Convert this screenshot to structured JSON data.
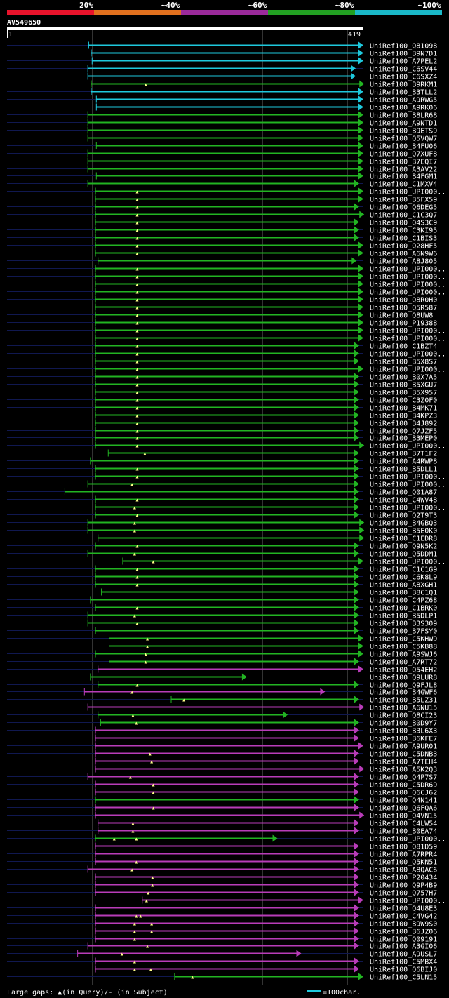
{
  "header": {
    "scale_labels": [
      "20%",
      "~40%",
      "~60%",
      "~80%",
      "~100%"
    ],
    "scale_colors": [
      "#e8132b",
      "#e0701e",
      "#9a2a9a",
      "#22a022",
      "#1ab8c8"
    ],
    "query_id": "AV549650",
    "ruler_start": "1",
    "ruler_end": "419"
  },
  "footer": {
    "legend_text": "Large gaps: ▲(in Query)/- (in Subject)",
    "scale_text": "=100char."
  },
  "colors": {
    "cyan": "#1ec8dc",
    "green": "#22b422",
    "magenta": "#b83cb8",
    "dark": "#101850",
    "gap": "#ffff88",
    "grid": "#333333"
  },
  "chart_data": {
    "type": "alignment",
    "query_length": 419,
    "grid_positions": [
      100,
      200,
      300,
      400
    ],
    "hits": [
      {
        "id": "UniRef100_Q81098",
        "start": 96,
        "end": 419,
        "identity": "~100%"
      },
      {
        "id": "UniRef100_B9N7D1",
        "start": 99,
        "end": 419,
        "identity": "~100%"
      },
      {
        "id": "UniRef100_A7PEL2",
        "start": 100,
        "end": 419,
        "identity": "~100%"
      },
      {
        "id": "UniRef100_C6SV44",
        "start": 95,
        "end": 410,
        "identity": "~100%"
      },
      {
        "id": "UniRef100_C6SXZ4",
        "start": 95,
        "end": 410,
        "identity": "~100%"
      },
      {
        "id": "UniRef100_B9RKM1",
        "start": 99,
        "end": 420,
        "identity": "~80%",
        "gaps": [
          163
        ]
      },
      {
        "id": "UniRef100_B3TLL2",
        "start": 99,
        "end": 419,
        "identity": "~100%"
      },
      {
        "id": "UniRef100_A9RWG5",
        "start": 105,
        "end": 419,
        "identity": "~100%"
      },
      {
        "id": "UniRef100_A9RK06",
        "start": 105,
        "end": 419,
        "identity": "~100%"
      },
      {
        "id": "UniRef100_B8LR68",
        "start": 95,
        "end": 419,
        "identity": "~80%"
      },
      {
        "id": "UniRef100_A9NTD1",
        "start": 95,
        "end": 419,
        "identity": "~80%"
      },
      {
        "id": "UniRef100_B9ETS9",
        "start": 95,
        "end": 419,
        "identity": "~80%"
      },
      {
        "id": "UniRef100_Q5VQW7",
        "start": 95,
        "end": 419,
        "identity": "~80%"
      },
      {
        "id": "UniRef100_B4FU06",
        "start": 105,
        "end": 419,
        "identity": "~80%"
      },
      {
        "id": "UniRef100_Q7XUF8",
        "start": 95,
        "end": 419,
        "identity": "~80%"
      },
      {
        "id": "UniRef100_B7EQI7",
        "start": 95,
        "end": 419,
        "identity": "~80%"
      },
      {
        "id": "UniRef100_A3AV22",
        "start": 95,
        "end": 419,
        "identity": "~80%"
      },
      {
        "id": "UniRef100_B4FGM1",
        "start": 105,
        "end": 419,
        "identity": "~80%"
      },
      {
        "id": "UniRef100_C1MXV4",
        "start": 95,
        "end": 414,
        "identity": "~80%"
      },
      {
        "id": "UniRef100_UPI000..",
        "start": 104,
        "end": 419,
        "identity": "~80%",
        "gaps": [
          153
        ]
      },
      {
        "id": "UniRef100_B5FX59",
        "start": 104,
        "end": 419,
        "identity": "~80%",
        "gaps": [
          153
        ]
      },
      {
        "id": "UniRef100_Q6DEG5",
        "start": 104,
        "end": 414,
        "identity": "~80%",
        "gaps": [
          153
        ]
      },
      {
        "id": "UniRef100_C1C3Q7",
        "start": 104,
        "end": 420,
        "identity": "~80%",
        "gaps": [
          153
        ]
      },
      {
        "id": "UniRef100_Q4S3C9",
        "start": 104,
        "end": 414,
        "identity": "~80%",
        "gaps": [
          153
        ]
      },
      {
        "id": "UniRef100_C3KI95",
        "start": 104,
        "end": 414,
        "identity": "~80%",
        "gaps": [
          153
        ]
      },
      {
        "id": "UniRef100_C1BIS3",
        "start": 104,
        "end": 414,
        "identity": "~80%",
        "gaps": [
          153
        ]
      },
      {
        "id": "UniRef100_Q28HF5",
        "start": 104,
        "end": 419,
        "identity": "~80%",
        "gaps": [
          153
        ]
      },
      {
        "id": "UniRef100_A6N9W6",
        "start": 104,
        "end": 419,
        "identity": "~80%",
        "gaps": [
          153
        ]
      },
      {
        "id": "UniRef100_A8J805",
        "start": 107,
        "end": 411,
        "identity": "~80%"
      },
      {
        "id": "UniRef100_UPI000..",
        "start": 104,
        "end": 419,
        "identity": "~80%",
        "gaps": [
          153
        ]
      },
      {
        "id": "UniRef100_UPI000..",
        "start": 104,
        "end": 419,
        "identity": "~80%",
        "gaps": [
          153
        ]
      },
      {
        "id": "UniRef100_UPI000..",
        "start": 104,
        "end": 419,
        "identity": "~80%",
        "gaps": [
          153
        ]
      },
      {
        "id": "UniRef100_UPI000..",
        "start": 104,
        "end": 419,
        "identity": "~80%",
        "gaps": [
          153
        ]
      },
      {
        "id": "UniRef100_Q8R0H0",
        "start": 104,
        "end": 419,
        "identity": "~80%",
        "gaps": [
          153
        ]
      },
      {
        "id": "UniRef100_Q5R587",
        "start": 104,
        "end": 419,
        "identity": "~80%",
        "gaps": [
          153
        ]
      },
      {
        "id": "UniRef100_Q8UW8",
        "start": 104,
        "end": 419,
        "identity": "~80%",
        "gaps": [
          153
        ]
      },
      {
        "id": "UniRef100_P19388",
        "start": 104,
        "end": 419,
        "identity": "~80%",
        "gaps": [
          153
        ]
      },
      {
        "id": "UniRef100_UPI000..",
        "start": 104,
        "end": 419,
        "identity": "~80%",
        "gaps": [
          153
        ]
      },
      {
        "id": "UniRef100_UPI000..",
        "start": 104,
        "end": 419,
        "identity": "~80%",
        "gaps": [
          153
        ]
      },
      {
        "id": "UniRef100_C1BZT4",
        "start": 104,
        "end": 414,
        "identity": "~80%",
        "gaps": [
          153
        ]
      },
      {
        "id": "UniRef100_UPI000..",
        "start": 104,
        "end": 414,
        "identity": "~80%",
        "gaps": [
          153
        ]
      },
      {
        "id": "UniRef100_B5X8S7",
        "start": 104,
        "end": 414,
        "identity": "~80%",
        "gaps": [
          153
        ]
      },
      {
        "id": "UniRef100_UPI000..",
        "start": 104,
        "end": 419,
        "identity": "~80%",
        "gaps": [
          153
        ]
      },
      {
        "id": "UniRef100_B0X7A5",
        "start": 104,
        "end": 414,
        "identity": "~80%",
        "gaps": [
          153
        ]
      },
      {
        "id": "UniRef100_B5XGU7",
        "start": 104,
        "end": 414,
        "identity": "~80%",
        "gaps": [
          153
        ]
      },
      {
        "id": "UniRef100_B5X957",
        "start": 104,
        "end": 414,
        "identity": "~80%",
        "gaps": [
          153
        ]
      },
      {
        "id": "UniRef100_C3Z0F0",
        "start": 104,
        "end": 414,
        "identity": "~80%",
        "gaps": [
          153
        ]
      },
      {
        "id": "UniRef100_B4MK71",
        "start": 104,
        "end": 414,
        "identity": "~80%",
        "gaps": [
          153
        ]
      },
      {
        "id": "UniRef100_B4KPZ3",
        "start": 104,
        "end": 414,
        "identity": "~80%",
        "gaps": [
          153
        ]
      },
      {
        "id": "UniRef100_B4J892",
        "start": 104,
        "end": 414,
        "identity": "~80%",
        "gaps": [
          153
        ]
      },
      {
        "id": "UniRef100_Q7JZF5",
        "start": 104,
        "end": 414,
        "identity": "~80%",
        "gaps": [
          153
        ]
      },
      {
        "id": "UniRef100_B3MEP0",
        "start": 104,
        "end": 414,
        "identity": "~80%",
        "gaps": [
          153
        ]
      },
      {
        "id": "UniRef100_UPI000..",
        "start": 104,
        "end": 420,
        "identity": "~80%",
        "gaps": [
          153
        ]
      },
      {
        "id": "UniRef100_B7T1F2",
        "start": 119,
        "end": 414,
        "identity": "~80%",
        "gaps": [
          162
        ]
      },
      {
        "id": "UniRef100_A4RWP8",
        "start": 98,
        "end": 414,
        "identity": "~80%"
      },
      {
        "id": "UniRef100_B5DLL1",
        "start": 104,
        "end": 414,
        "identity": "~80%",
        "gaps": [
          153
        ]
      },
      {
        "id": "UniRef100_UPI000..",
        "start": 104,
        "end": 414,
        "identity": "~80%",
        "gaps": [
          153
        ]
      },
      {
        "id": "UniRef100_UPI000..",
        "start": 95,
        "end": 414,
        "identity": "~80%",
        "gaps": [
          147
        ]
      },
      {
        "id": "UniRef100_Q01A87",
        "start": 68,
        "end": 414,
        "identity": "~80%"
      },
      {
        "id": "UniRef100_C4WV48",
        "start": 104,
        "end": 414,
        "identity": "~80%",
        "gaps": [
          153
        ]
      },
      {
        "id": "UniRef100_UPI000..",
        "start": 104,
        "end": 414,
        "identity": "~80%",
        "gaps": [
          150
        ]
      },
      {
        "id": "UniRef100_Q2T9T3",
        "start": 104,
        "end": 414,
        "identity": "~80%",
        "gaps": [
          153
        ]
      },
      {
        "id": "UniRef100_B4GBQ3",
        "start": 95,
        "end": 420,
        "identity": "~80%",
        "gaps": [
          150
        ]
      },
      {
        "id": "UniRef100_B5E0K0",
        "start": 95,
        "end": 420,
        "identity": "~80%",
        "gaps": [
          150
        ]
      },
      {
        "id": "UniRef100_C1EDR8",
        "start": 107,
        "end": 420,
        "identity": "~80%"
      },
      {
        "id": "UniRef100_Q9N5K2",
        "start": 104,
        "end": 414,
        "identity": "~80%",
        "gaps": [
          153
        ]
      },
      {
        "id": "UniRef100_Q5DDM1",
        "start": 95,
        "end": 414,
        "identity": "~80%",
        "gaps": [
          150
        ]
      },
      {
        "id": "UniRef100_UPI000..",
        "start": 136,
        "end": 419,
        "identity": "~80%",
        "gaps": [
          172
        ]
      },
      {
        "id": "UniRef100_C1C1G9",
        "start": 104,
        "end": 414,
        "identity": "~80%",
        "gaps": [
          153
        ]
      },
      {
        "id": "UniRef100_C6K8L9",
        "start": 104,
        "end": 414,
        "identity": "~80%",
        "gaps": [
          153
        ]
      },
      {
        "id": "UniRef100_A8XGH1",
        "start": 104,
        "end": 414,
        "identity": "~80%",
        "gaps": [
          153
        ]
      },
      {
        "id": "UniRef100_B8C1Q1",
        "start": 111,
        "end": 414,
        "identity": "~80%"
      },
      {
        "id": "UniRef100_C4PZ68",
        "start": 98,
        "end": 414,
        "identity": "~80%"
      },
      {
        "id": "UniRef100_C1BRK0",
        "start": 104,
        "end": 414,
        "identity": "~80%",
        "gaps": [
          153
        ]
      },
      {
        "id": "UniRef100_B5DLP1",
        "start": 95,
        "end": 414,
        "identity": "~80%",
        "gaps": [
          150
        ]
      },
      {
        "id": "UniRef100_B3S309",
        "start": 95,
        "end": 414,
        "identity": "~80%",
        "gaps": [
          153
        ]
      },
      {
        "id": "UniRef100_B7FSY0",
        "start": 104,
        "end": 414,
        "identity": "~80%"
      },
      {
        "id": "UniRef100_C5KHW9",
        "start": 120,
        "end": 419,
        "identity": "~80%",
        "gaps": [
          165
        ]
      },
      {
        "id": "UniRef100_C5KB88",
        "start": 120,
        "end": 419,
        "identity": "~80%",
        "gaps": [
          165
        ]
      },
      {
        "id": "UniRef100_A9SWJ6",
        "start": 104,
        "end": 419,
        "identity": "~80%",
        "gaps": [
          163
        ]
      },
      {
        "id": "UniRef100_A7RT72",
        "start": 120,
        "end": 414,
        "identity": "~80%",
        "gaps": [
          163
        ]
      },
      {
        "id": "UniRef100_Q54EH2",
        "start": 107,
        "end": 419,
        "identity": "~60%"
      },
      {
        "id": "UniRef100_Q9LUR8",
        "start": 98,
        "end": 282,
        "identity": "~80%"
      },
      {
        "id": "UniRef100_Q9FJL8",
        "start": 107,
        "end": 414,
        "identity": "~80%",
        "gaps": [
          153
        ]
      },
      {
        "id": "UniRef100_B4GWF6",
        "start": 91,
        "end": 374,
        "identity": "~60%",
        "gaps": [
          147
        ]
      },
      {
        "id": "UniRef100_B5LZ31",
        "start": 193,
        "end": 414,
        "identity": "~80%",
        "gaps": [
          208
        ]
      },
      {
        "id": "UniRef100_A6NU15",
        "start": 95,
        "end": 420,
        "identity": "~60%"
      },
      {
        "id": "UniRef100_Q8CI23",
        "start": 107,
        "end": 330,
        "identity": "~80%",
        "gaps": [
          148
        ]
      },
      {
        "id": "UniRef100_B0D9Y7",
        "start": 110,
        "end": 414,
        "identity": "~80%",
        "gaps": [
          152
        ]
      },
      {
        "id": "UniRef100_B3L6X3",
        "start": 104,
        "end": 414,
        "identity": "~60%"
      },
      {
        "id": "UniRef100_B6KFE7",
        "start": 104,
        "end": 414,
        "identity": "~60%"
      },
      {
        "id": "UniRef100_A9UR01",
        "start": 104,
        "end": 419,
        "identity": "~60%"
      },
      {
        "id": "UniRef100_C5DNB3",
        "start": 104,
        "end": 414,
        "identity": "~60%",
        "gaps": [
          168
        ]
      },
      {
        "id": "UniRef100_A7TEH4",
        "start": 104,
        "end": 414,
        "identity": "~60%",
        "gaps": [
          170
        ]
      },
      {
        "id": "UniRef100_A5K2Q3",
        "start": 104,
        "end": 420,
        "identity": "~60%"
      },
      {
        "id": "UniRef100_Q4P7S7",
        "start": 95,
        "end": 414,
        "identity": "~60%",
        "gaps": [
          145
        ]
      },
      {
        "id": "UniRef100_C5DR69",
        "start": 104,
        "end": 414,
        "identity": "~60%",
        "gaps": [
          172
        ]
      },
      {
        "id": "UniRef100_Q6CJ62",
        "start": 104,
        "end": 414,
        "identity": "~60%",
        "gaps": [
          172
        ]
      },
      {
        "id": "UniRef100_Q4N141",
        "start": 104,
        "end": 414,
        "identity": "~80%"
      },
      {
        "id": "UniRef100_Q6FQA6",
        "start": 104,
        "end": 414,
        "identity": "~60%",
        "gaps": [
          172
        ]
      },
      {
        "id": "UniRef100_Q4VN15",
        "start": 104,
        "end": 420,
        "identity": "~60%"
      },
      {
        "id": "UniRef100_C4LW54",
        "start": 107,
        "end": 414,
        "identity": "~60%",
        "gaps": [
          148
        ]
      },
      {
        "id": "UniRef100_B0EA74",
        "start": 107,
        "end": 414,
        "identity": "~60%",
        "gaps": [
          148
        ]
      },
      {
        "id": "UniRef100_UPI000..",
        "start": 104,
        "end": 318,
        "identity": "~80%",
        "gaps": [
          126,
          152
        ]
      },
      {
        "id": "UniRef100_Q81D59",
        "start": 104,
        "end": 414,
        "identity": "~60%"
      },
      {
        "id": "UniRef100_A7RPR4",
        "start": 104,
        "end": 414,
        "identity": "~60%"
      },
      {
        "id": "UniRef100_Q5KN51",
        "start": 104,
        "end": 414,
        "identity": "~60%",
        "gaps": [
          152
        ]
      },
      {
        "id": "UniRef100_A8QAC6",
        "start": 95,
        "end": 414,
        "identity": "~60%",
        "gaps": [
          147
        ]
      },
      {
        "id": "UniRef100_P20434",
        "start": 104,
        "end": 414,
        "identity": "~60%",
        "gaps": [
          171
        ]
      },
      {
        "id": "UniRef100_Q9P4B9",
        "start": 104,
        "end": 414,
        "identity": "~60%",
        "gaps": [
          171
        ]
      },
      {
        "id": "UniRef100_Q757H7",
        "start": 104,
        "end": 414,
        "identity": "~60%",
        "gaps": [
          166
        ]
      },
      {
        "id": "UniRef100_UPI000..",
        "start": 159,
        "end": 419,
        "identity": "~60%",
        "gaps": [
          164
        ]
      },
      {
        "id": "UniRef100_Q4U8E3",
        "start": 104,
        "end": 414,
        "identity": "~60%"
      },
      {
        "id": "UniRef100_C4VG42",
        "start": 104,
        "end": 414,
        "identity": "~60%",
        "gaps": [
          152,
          157
        ]
      },
      {
        "id": "UniRef100_B9W9S0",
        "start": 104,
        "end": 414,
        "identity": "~60%",
        "gaps": [
          150,
          170
        ]
      },
      {
        "id": "UniRef100_B6JZ06",
        "start": 104,
        "end": 414,
        "identity": "~60%",
        "gaps": [
          150,
          170
        ]
      },
      {
        "id": "UniRef100_Q09191",
        "start": 104,
        "end": 414,
        "identity": "~60%",
        "gaps": [
          150
        ]
      },
      {
        "id": "UniRef100_A3GI06",
        "start": 95,
        "end": 414,
        "identity": "~60%",
        "gaps": [
          165
        ]
      },
      {
        "id": "UniRef100_A9USL7",
        "start": 83,
        "end": 346,
        "identity": "~60%",
        "gaps": [
          135
        ]
      },
      {
        "id": "UniRef100_C5MBX4",
        "start": 104,
        "end": 414,
        "identity": "~60%",
        "gaps": [
          150
        ]
      },
      {
        "id": "UniRef100_Q6BIJ0",
        "start": 104,
        "end": 414,
        "identity": "~60%",
        "gaps": [
          150,
          169
        ]
      },
      {
        "id": "UniRef100_C5LN15",
        "start": 197,
        "end": 419,
        "identity": "~80%",
        "gaps": [
          218
        ]
      }
    ]
  }
}
